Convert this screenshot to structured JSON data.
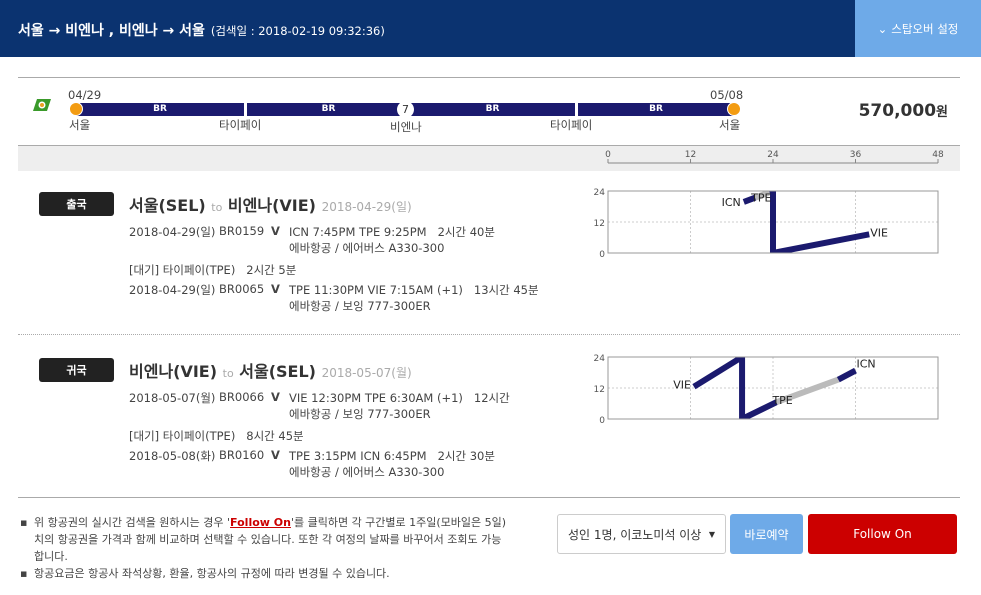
{
  "header": {
    "route": "서울 → 비엔나 , 비엔나 → 서울",
    "search_date": "(검색일 : 2018-02-19 09:32:36)",
    "stopover_button": "스탑오버 설정",
    "stopover_icon": "chevron-down-icon"
  },
  "timeline": {
    "start_date": "04/29",
    "end_date": "05/08",
    "segments": [
      "BR",
      "BR",
      "BR",
      "BR"
    ],
    "stay_days": "7",
    "cities": [
      "서울",
      "타이페이",
      "비엔나",
      "타이페이",
      "서울"
    ],
    "price": "570,000",
    "currency": "원",
    "airline_icon": "airline-logo-icon"
  },
  "axis": {
    "ticks": [
      "0",
      "12",
      "24",
      "36",
      "48"
    ]
  },
  "colors": {
    "header": "#0b3370",
    "flight": "#1b1a6e",
    "layover": "#bbbbbb",
    "follow_on": "#cc0000",
    "book": "#6eaae8"
  },
  "legs": [
    {
      "badge": "출국",
      "from": "서울(SEL)",
      "to_word": "to",
      "to": "비엔나(VIE)",
      "date": "2018-04-29(일)",
      "flights": [
        {
          "date": "2018-04-29(일)",
          "code": "BR0159",
          "mark": "V",
          "times": "ICN 7:45PM TPE 9:25PM",
          "duration": "2시간 40분",
          "aircraft": "에바항공 / 에어버스 A330-300"
        },
        {
          "date": "2018-04-29(일)",
          "code": "BR0065",
          "mark": "V",
          "times": "TPE 11:30PM VIE 7:15AM (+1)",
          "duration": "13시간 45분",
          "aircraft": "에바항공 / 보잉 777-300ER"
        }
      ],
      "wait": {
        "label": "[대기] 타이페이(TPE)",
        "duration": "2시간 5분"
      }
    },
    {
      "badge": "귀국",
      "from": "비엔나(VIE)",
      "to_word": "to",
      "to": "서울(SEL)",
      "date": "2018-05-07(월)",
      "flights": [
        {
          "date": "2018-05-07(월)",
          "code": "BR0066",
          "mark": "V",
          "times": "VIE 12:30PM TPE 6:30AM (+1)",
          "duration": "12시간",
          "aircraft": "에바항공 / 보잉 777-300ER"
        },
        {
          "date": "2018-05-08(화)",
          "code": "BR0160",
          "mark": "V",
          "times": "TPE 3:15PM ICN 6:45PM",
          "duration": "2시간 30분",
          "aircraft": "에바항공 / 에어버스 A330-300"
        }
      ],
      "wait": {
        "label": "[대기] 타이페이(TPE)",
        "duration": "8시간 45분"
      }
    }
  ],
  "chart_data": [
    {
      "type": "line",
      "xlim": [
        0,
        48
      ],
      "ylim": [
        0,
        24
      ],
      "xticks": [
        0,
        12,
        24,
        36,
        48
      ],
      "yticks": [
        "0",
        "12",
        "24"
      ],
      "grid": true,
      "series": [
        {
          "kind": "flight",
          "points": [
            [
              19.75,
              19.75
            ],
            [
              21.4,
              21.4
            ]
          ]
        },
        {
          "kind": "layover",
          "points": [
            [
              21.4,
              21.4
            ],
            [
              23.5,
              23.5
            ]
          ]
        },
        {
          "kind": "flight",
          "points": [
            [
              23.5,
              23.5
            ],
            [
              24,
              24
            ],
            [
              24,
              0
            ],
            [
              38,
              7.25
            ]
          ]
        }
      ],
      "labels": [
        {
          "text": "ICN",
          "x": 19.75,
          "y": 19.75
        },
        {
          "text": "TPE",
          "x": 21.4,
          "y": 21.4
        },
        {
          "text": "VIE",
          "x": 38,
          "y": 7.25
        }
      ]
    },
    {
      "type": "line",
      "xlim": [
        0,
        48
      ],
      "ylim": [
        0,
        24
      ],
      "xticks": [
        0,
        12,
        24,
        36,
        48
      ],
      "yticks": [
        "0",
        "12",
        "24"
      ],
      "grid": true,
      "series": [
        {
          "kind": "flight",
          "points": [
            [
              12.5,
              12.5
            ],
            [
              19.5,
              24
            ],
            [
              19.5,
              0
            ],
            [
              24.5,
              6.5
            ]
          ]
        },
        {
          "kind": "layover",
          "points": [
            [
              24.5,
              6.5
            ],
            [
              33.5,
              15.25
            ]
          ]
        },
        {
          "kind": "flight",
          "points": [
            [
              33.5,
              15.25
            ],
            [
              36,
              18.75
            ]
          ]
        }
      ],
      "labels": [
        {
          "text": "VIE",
          "x": 12.5,
          "y": 12.5
        },
        {
          "text": "TPE",
          "x": 24.5,
          "y": 6.5
        },
        {
          "text": "ICN",
          "x": 36,
          "y": 18.75
        }
      ]
    }
  ],
  "footer": {
    "note1_pre": "위 항공권의 실시간 검색을 원하시는 경우 '",
    "note1_link": "Follow On",
    "note1_post": "'를 클릭하면 각 구간별로 1주일(모바일은 5일)치의 항공권을 가격과 함께 비교하며 선택할 수 있습니다. 또한 각 여정의 날짜를 바꾸어서 조회도 가능합니다.",
    "note2": "항공요금은 항공사 좌석상황, 환율, 항공사의 규정에 따라 변경될 수 있습니다.",
    "passenger_select": "성인 1명, 이코노미석 이상",
    "book_button": "바로예약",
    "follow_button": "Follow On"
  }
}
